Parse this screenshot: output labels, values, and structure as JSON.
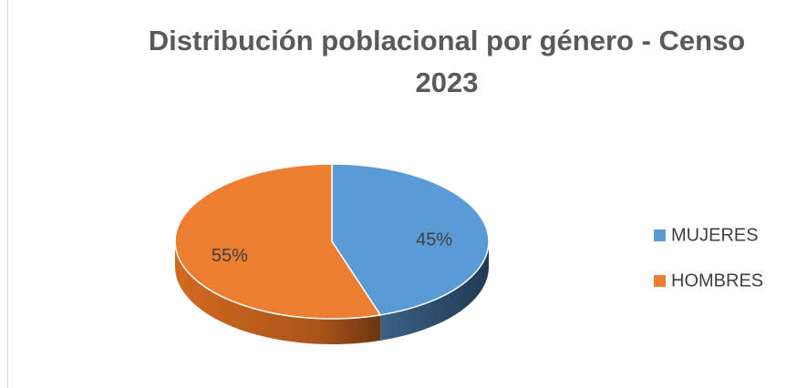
{
  "chart_data": {
    "type": "pie",
    "title": "Distribución poblacional por género - Censo 2023",
    "categories": [
      "MUJERES",
      "HOMBRES"
    ],
    "values": [
      45,
      55
    ],
    "value_labels": [
      "45%",
      "55%"
    ],
    "colors": [
      "#5b9bd5",
      "#ed7d31"
    ],
    "legend": "right"
  }
}
